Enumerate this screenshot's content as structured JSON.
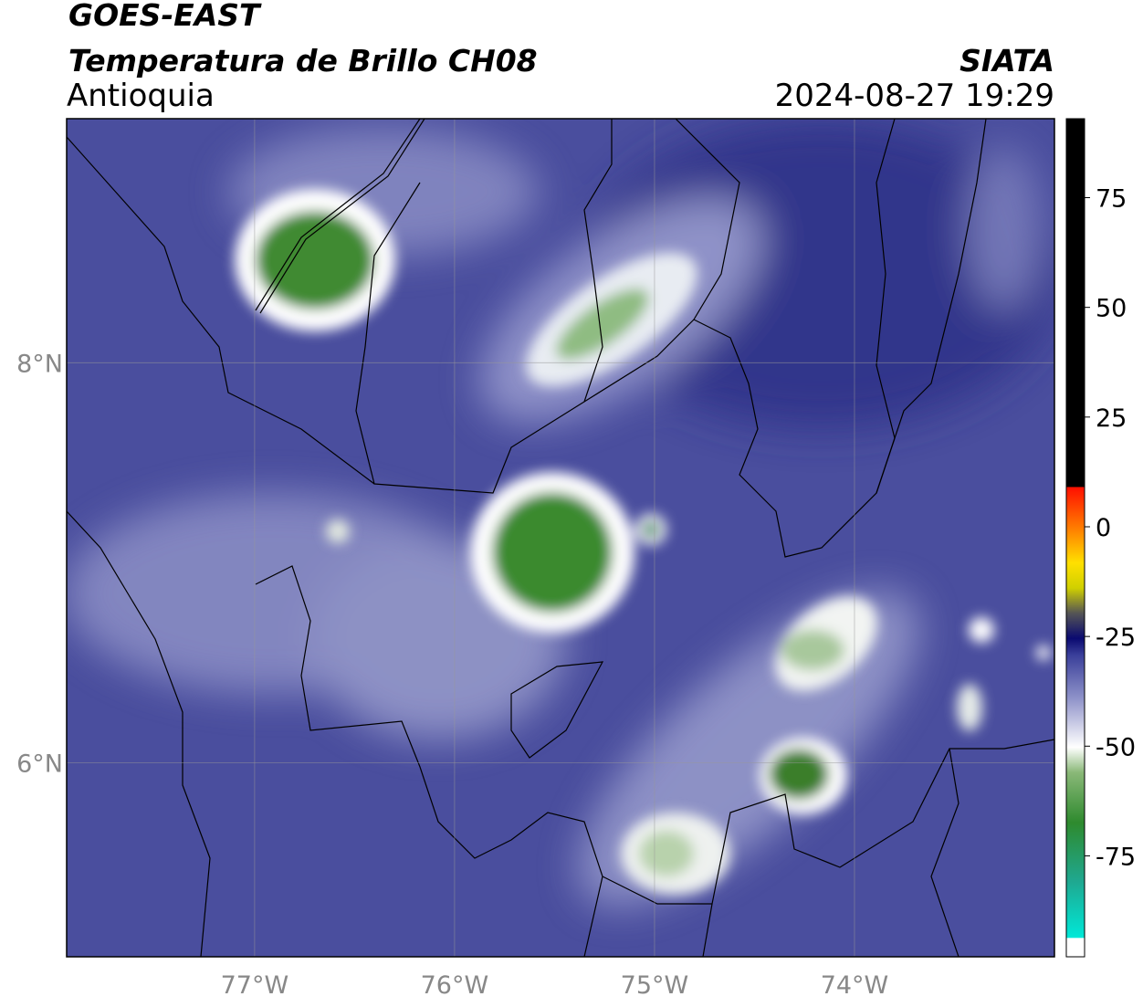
{
  "header": {
    "title": "GOES-EAST",
    "subtitle": "Temperatura de Brillo CH08",
    "region": "Antioquia",
    "source": "SIATA",
    "datetime": "2024-08-27 19:29"
  },
  "map": {
    "xlim": [
      -77.94,
      -73.0
    ],
    "ylim": [
      5.03,
      9.22
    ],
    "xticks": [
      {
        "value": -77,
        "label": "77°W"
      },
      {
        "value": -76,
        "label": "76°W"
      },
      {
        "value": -75,
        "label": "75°W"
      },
      {
        "value": -74,
        "label": "74°W"
      }
    ],
    "yticks": [
      {
        "value": 6,
        "label": "6°N"
      },
      {
        "value": 8,
        "label": "8°N"
      }
    ],
    "grid": true
  },
  "colorbar": {
    "lim": [
      -98,
      93
    ],
    "ticks": [
      -75,
      -50,
      -25,
      0,
      25,
      50,
      75
    ]
  }
}
